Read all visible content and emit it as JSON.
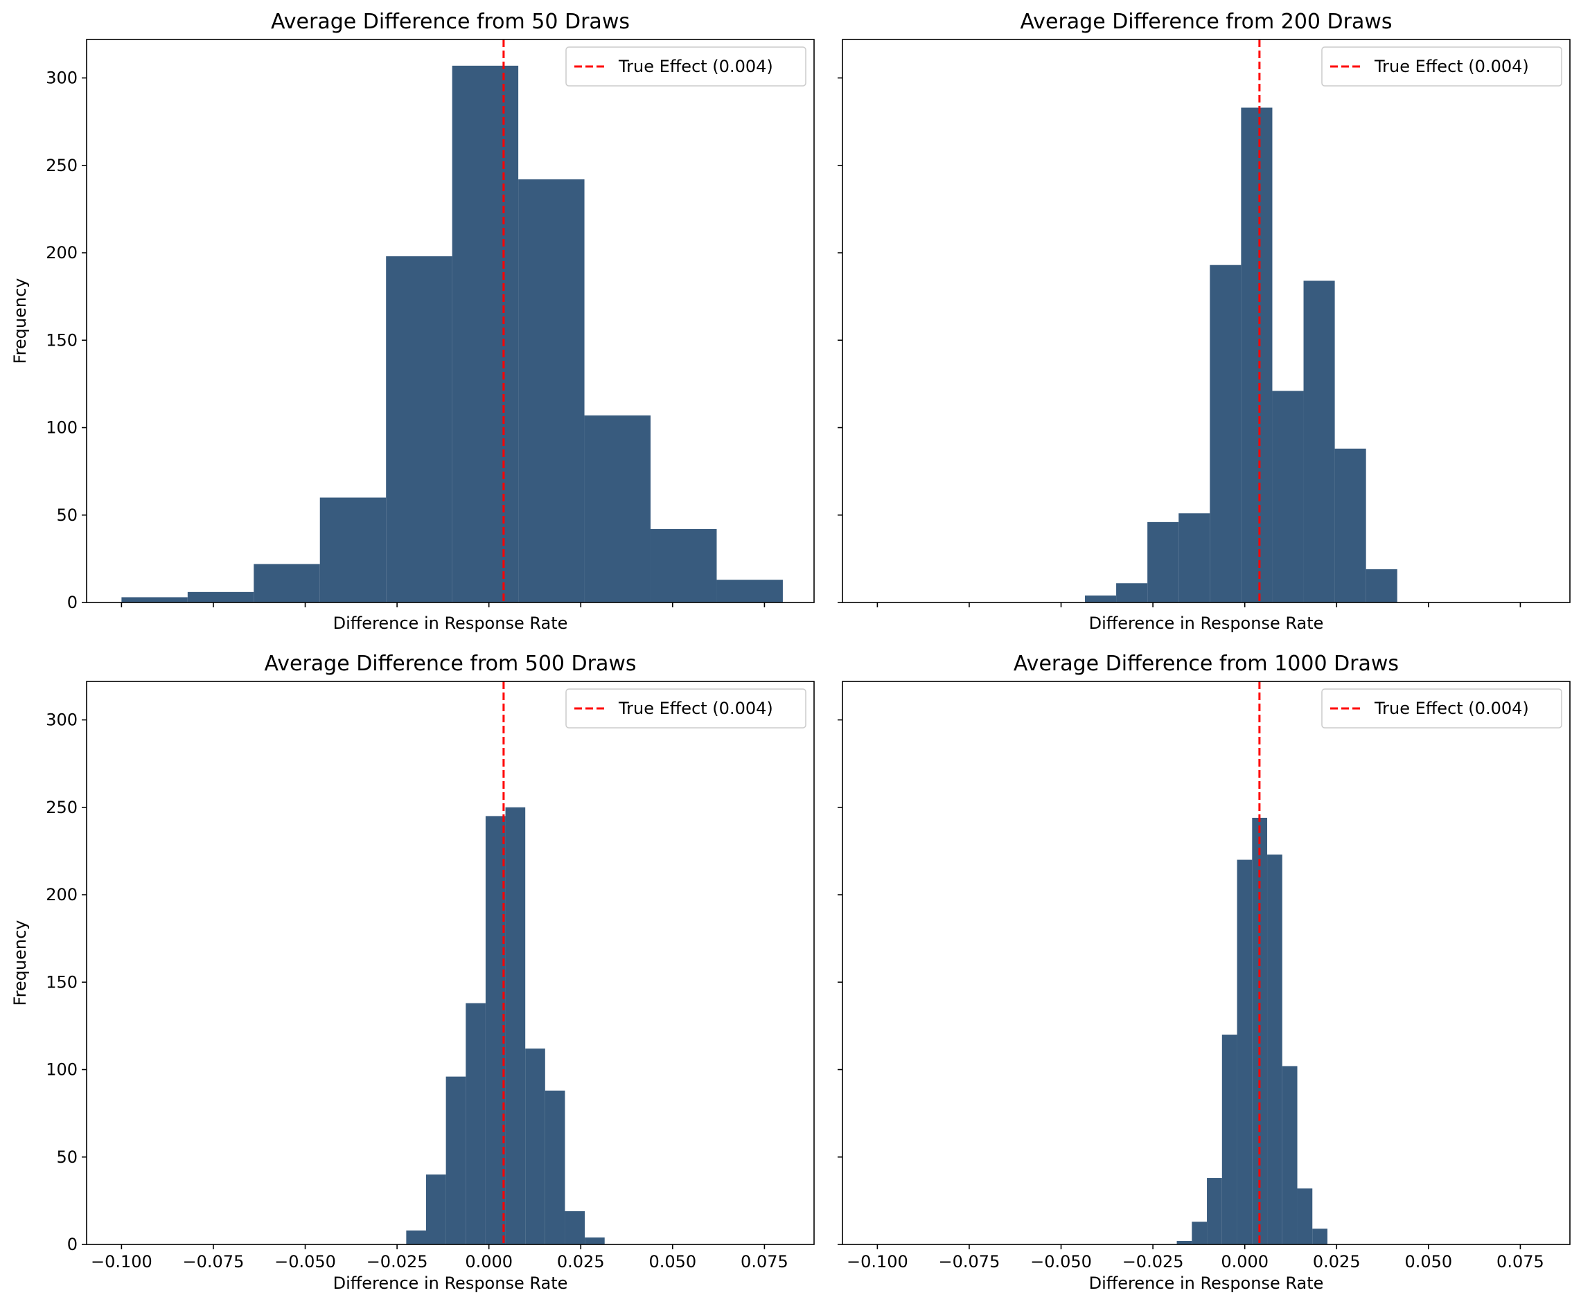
{
  "colors": {
    "bar": "#385b7e",
    "true_effect_line": "#ff0000",
    "axes": "#000000",
    "background": "#ffffff"
  },
  "chart_data": [
    {
      "type": "bar",
      "title": "Average Difference from 50 Draws",
      "xlabel": "Difference in Response Rate",
      "ylabel": "Frequency",
      "xlim": [
        -0.1095,
        0.0885
      ],
      "ylim": [
        0,
        322
      ],
      "x_ticks": [
        -0.1,
        -0.075,
        -0.05,
        -0.025,
        0.0,
        0.025,
        0.05,
        0.075
      ],
      "x_tick_labels": [],
      "y_ticks": [
        0,
        50,
        100,
        150,
        200,
        250,
        300
      ],
      "y_tick_labels": [
        "0",
        "50",
        "100",
        "150",
        "200",
        "250",
        "300"
      ],
      "bin_edges": [
        -0.1,
        -0.082,
        -0.064,
        -0.046,
        -0.028,
        -0.01,
        0.008,
        0.026,
        0.044,
        0.062,
        0.08
      ],
      "counts": [
        3,
        6,
        22,
        60,
        198,
        307,
        242,
        107,
        42,
        13
      ],
      "true_effect": 0.004,
      "legend": {
        "label": "True Effect (0.004)",
        "loc": "upper right"
      }
    },
    {
      "type": "bar",
      "title": "Average Difference from 200 Draws",
      "xlabel": "Difference in Response Rate",
      "ylabel": "",
      "xlim": [
        -0.1095,
        0.0885
      ],
      "ylim": [
        0,
        322
      ],
      "x_ticks": [
        -0.1,
        -0.075,
        -0.05,
        -0.025,
        0.0,
        0.025,
        0.05,
        0.075
      ],
      "x_tick_labels": [],
      "y_ticks": [
        0,
        50,
        100,
        150,
        200,
        250,
        300
      ],
      "y_tick_labels": [],
      "bin_edges": [
        -0.0435,
        -0.035,
        -0.0265,
        -0.018,
        -0.0095,
        -0.001,
        0.0075,
        0.016,
        0.0245,
        0.033,
        0.0415
      ],
      "counts": [
        4,
        11,
        46,
        51,
        193,
        283,
        121,
        184,
        88,
        19
      ],
      "true_effect": 0.004,
      "legend": {
        "label": "True Effect (0.004)",
        "loc": "upper right"
      }
    },
    {
      "type": "bar",
      "title": "Average Difference from 500 Draws",
      "xlabel": "Difference in Response Rate",
      "ylabel": "Frequency",
      "xlim": [
        -0.1095,
        0.0885
      ],
      "ylim": [
        0,
        322
      ],
      "x_ticks": [
        -0.1,
        -0.075,
        -0.05,
        -0.025,
        0.0,
        0.025,
        0.05,
        0.075
      ],
      "x_tick_labels": [
        "−0.100",
        "−0.075",
        "−0.050",
        "−0.025",
        "0.000",
        "0.025",
        "0.050",
        "0.075"
      ],
      "y_ticks": [
        0,
        50,
        100,
        150,
        200,
        250,
        300
      ],
      "y_tick_labels": [
        "0",
        "50",
        "100",
        "150",
        "200",
        "250",
        "300"
      ],
      "bin_edges": [
        -0.0225,
        -0.0171,
        -0.0117,
        -0.0063,
        -0.0009,
        0.0045,
        0.0099,
        0.0153,
        0.0207,
        0.0261,
        0.0315
      ],
      "counts": [
        8,
        40,
        96,
        138,
        245,
        250,
        112,
        88,
        19,
        4
      ],
      "true_effect": 0.004,
      "legend": {
        "label": "True Effect (0.004)",
        "loc": "upper right"
      }
    },
    {
      "type": "bar",
      "title": "Average Difference from 1000 Draws",
      "xlabel": "Difference in Response Rate",
      "ylabel": "",
      "xlim": [
        -0.1095,
        0.0885
      ],
      "ylim": [
        0,
        322
      ],
      "x_ticks": [
        -0.1,
        -0.075,
        -0.05,
        -0.025,
        0.0,
        0.025,
        0.05,
        0.075
      ],
      "x_tick_labels": [
        "−0.100",
        "−0.075",
        "−0.050",
        "−0.025",
        "0.000",
        "0.025",
        "0.050",
        "0.075"
      ],
      "y_ticks": [
        0,
        50,
        100,
        150,
        200,
        250,
        300
      ],
      "y_tick_labels": [],
      "bin_edges": [
        -0.0185,
        -0.0144,
        -0.0103,
        -0.0062,
        -0.0021,
        0.002,
        0.0061,
        0.0102,
        0.0143,
        0.0184,
        0.0225
      ],
      "counts": [
        2,
        13,
        38,
        120,
        220,
        244,
        223,
        102,
        32,
        9
      ],
      "true_effect": 0.004,
      "legend": {
        "label": "True Effect (0.004)",
        "loc": "upper right"
      }
    }
  ]
}
